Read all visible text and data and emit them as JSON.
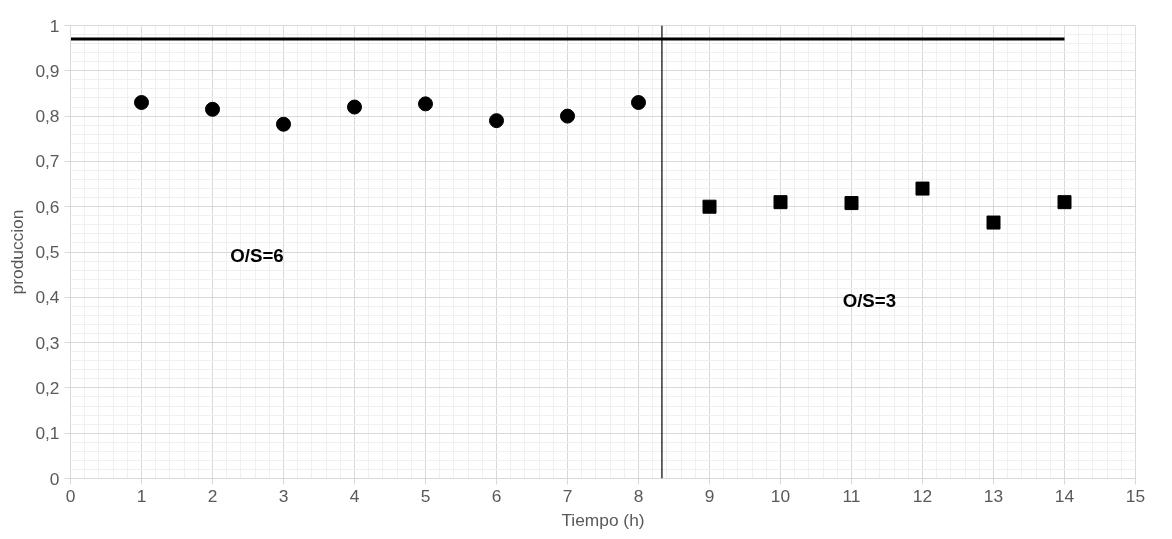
{
  "chart_data": {
    "type": "scatter",
    "xlabel": "Tiempo (h)",
    "ylabel": "produccion",
    "xlim": [
      0,
      15
    ],
    "ylim": [
      0,
      1
    ],
    "xticks": [
      0,
      1,
      2,
      3,
      4,
      5,
      6,
      7,
      8,
      9,
      10,
      11,
      12,
      13,
      14,
      15
    ],
    "yticks": [
      {
        "value": 0,
        "label": "0"
      },
      {
        "value": 0.1,
        "label": "0,1"
      },
      {
        "value": 0.2,
        "label": "0,2"
      },
      {
        "value": 0.3,
        "label": "0,3"
      },
      {
        "value": 0.4,
        "label": "0,4"
      },
      {
        "value": 0.5,
        "label": "0,5"
      },
      {
        "value": 0.6,
        "label": "0,6"
      },
      {
        "value": 0.7,
        "label": "0,7"
      },
      {
        "value": 0.8,
        "label": "0,8"
      },
      {
        "value": 0.9,
        "label": "0,9"
      },
      {
        "value": 1,
        "label": "1"
      }
    ],
    "grid": true,
    "series": [
      {
        "marker": "circle",
        "color": "#000000",
        "x": [
          1,
          2,
          3,
          4,
          5,
          6,
          7,
          8
        ],
        "values": [
          0.83,
          0.815,
          0.782,
          0.82,
          0.827,
          0.79,
          0.8,
          0.83
        ]
      },
      {
        "marker": "square",
        "color": "#000000",
        "x": [
          9,
          10,
          11,
          12,
          13,
          14
        ],
        "values": [
          0.6,
          0.61,
          0.608,
          0.64,
          0.565,
          0.61
        ]
      },
      {
        "type": "line",
        "marker": "none",
        "color": "#000000",
        "x": [
          0,
          14
        ],
        "values": [
          0.97,
          0.97
        ]
      }
    ],
    "ref_lines": [
      {
        "axis": "x",
        "value": 8.33,
        "label": null,
        "color": "#000000"
      }
    ],
    "annotations": [
      "O/S=6",
      "O/S=3"
    ]
  }
}
